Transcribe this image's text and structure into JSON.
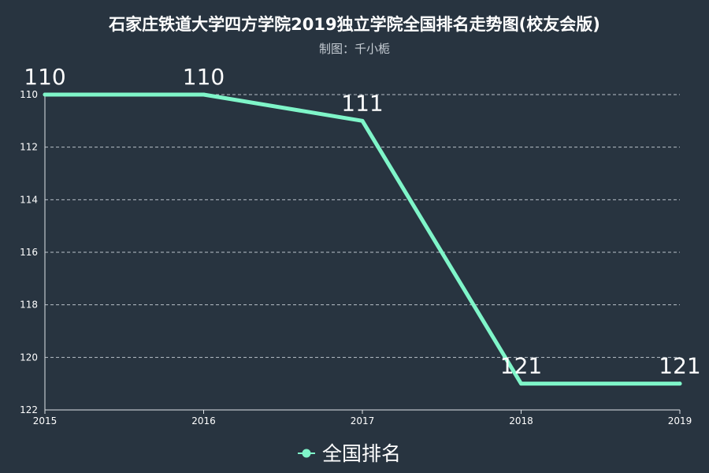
{
  "chart_data": {
    "type": "line",
    "title": "石家庄铁道大学四方学院2019独立学院全国排名走势图(校友会版)",
    "subtitle": "制图：千小栀",
    "x": [
      "2015",
      "2016",
      "2017",
      "2018",
      "2019"
    ],
    "series": [
      {
        "name": "全国排名",
        "values": [
          110,
          110,
          111,
          121,
          121
        ],
        "color": "#7ff5c9"
      }
    ],
    "y_ticks": [
      110,
      112,
      114,
      116,
      118,
      120,
      122
    ],
    "ylim": [
      110,
      122
    ],
    "y_inverted": true,
    "grid": "horizontal-dashed",
    "legend_position": "bottom-center",
    "background": "#283440"
  }
}
